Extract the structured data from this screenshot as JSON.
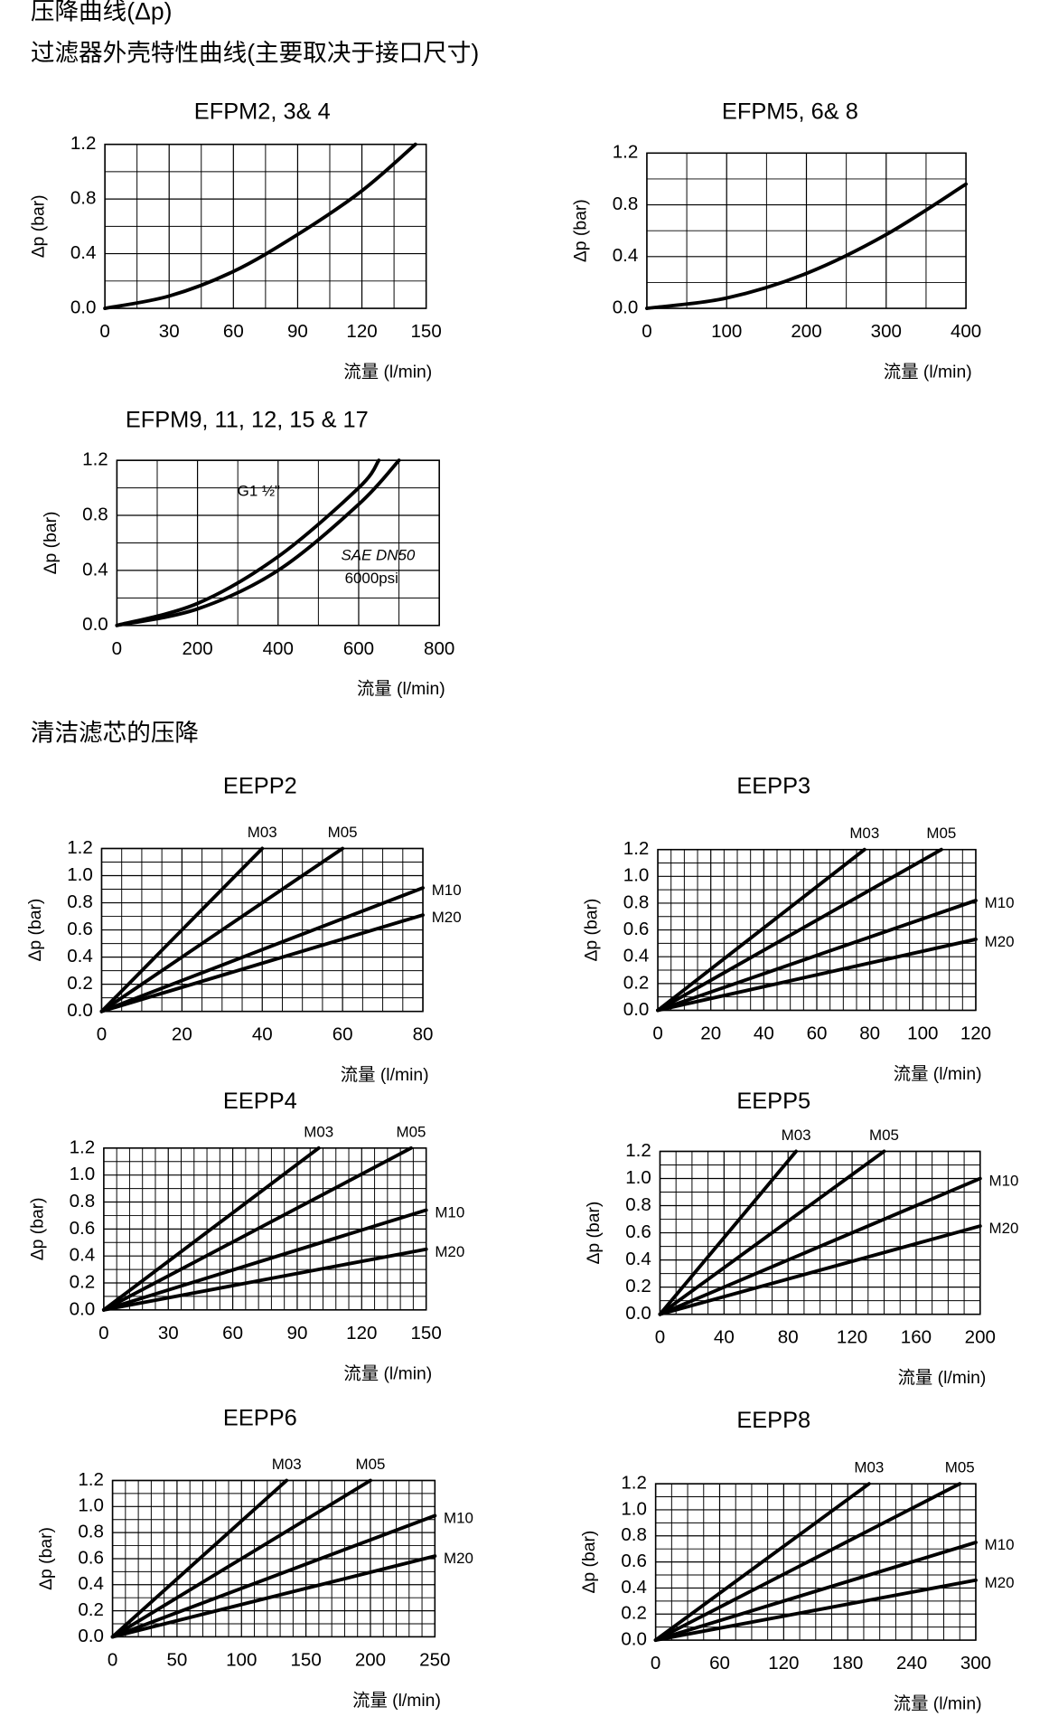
{
  "headings": {
    "title": "压降曲线(Δp)",
    "subtitle": "过滤器外壳特性曲线(主要取决于接口尺寸)",
    "section": "清洁滤芯的压降"
  },
  "chart_data": [
    {
      "type": "line",
      "title": "EFPM2, 3& 4",
      "ylabel": "Δp (bar)",
      "xlabel": "流量 (l/min)",
      "xlim": [
        0,
        150
      ],
      "ylim": [
        0,
        1.2
      ],
      "xticks": [
        0,
        30,
        60,
        90,
        120,
        150
      ],
      "yticks": [
        {
          "value": 0,
          "label": "0.0"
        },
        0.4,
        0.8,
        1.2
      ],
      "grid": true,
      "grid_divisions": {
        "x": 2,
        "y": 2
      },
      "series": [
        {
          "color": "#000000",
          "x": [
            0,
            30,
            60,
            90,
            120,
            145
          ],
          "values": [
            0,
            0.09,
            0.27,
            0.54,
            0.86,
            1.2
          ]
        }
      ]
    },
    {
      "type": "line",
      "title": "EFPM5, 6& 8",
      "ylabel": "Δp (bar)",
      "xlabel": "流量 (l/min)",
      "xlim": [
        0,
        400
      ],
      "ylim": [
        0,
        1.2
      ],
      "xticks": [
        0,
        100,
        200,
        300,
        400
      ],
      "yticks": [
        {
          "value": 0,
          "label": "0.0"
        },
        0.4,
        0.8,
        1.2
      ],
      "grid": true,
      "grid_divisions": {
        "x": 2,
        "y": 2
      },
      "series": [
        {
          "color": "#000000",
          "x": [
            0,
            100,
            200,
            300,
            400
          ],
          "values": [
            0,
            0.08,
            0.27,
            0.57,
            0.96
          ]
        }
      ]
    },
    {
      "type": "line",
      "title": "EFPM9, 11, 12, 15 & 17",
      "ylabel": "Δp (bar)",
      "xlabel": "流量 (l/min)",
      "xlim": [
        0,
        800
      ],
      "ylim": [
        0,
        1.2
      ],
      "xticks": [
        0,
        200,
        400,
        600,
        800
      ],
      "yticks": [
        {
          "value": 0,
          "label": "0.0"
        },
        0.4,
        0.8,
        1.2
      ],
      "grid": true,
      "grid_divisions": {
        "x": 2,
        "y": 2
      },
      "annotation": "6000psi",
      "series": [
        {
          "name": "G1 ½\"",
          "color": "#000000",
          "x": [
            0,
            200,
            400,
            600,
            650
          ],
          "values": [
            0,
            0.16,
            0.5,
            1.0,
            1.2
          ]
        },
        {
          "name": "SAE DN50",
          "color": "#000000",
          "x": [
            0,
            200,
            400,
            600,
            700
          ],
          "values": [
            0,
            0.12,
            0.4,
            0.88,
            1.2
          ]
        }
      ]
    },
    {
      "type": "line",
      "title": "EEPP2",
      "ylabel": "Δp (bar)",
      "xlabel": "流量 (l/min)",
      "xlim": [
        0,
        80
      ],
      "ylim": [
        0,
        1.2
      ],
      "xticks": [
        0,
        20,
        40,
        60,
        80
      ],
      "yticks": [
        {
          "value": 0,
          "label": "0.0"
        },
        0.2,
        0.4,
        0.6,
        0.8,
        {
          "value": 1,
          "label": "1.0"
        },
        1.2
      ],
      "grid": true,
      "grid_divisions": {
        "x": 4,
        "y": 2
      },
      "series": [
        {
          "name": "M03",
          "color": "#000000",
          "x": [
            0,
            40
          ],
          "values": [
            0,
            1.2
          ]
        },
        {
          "name": "M05",
          "color": "#000000",
          "x": [
            0,
            60
          ],
          "values": [
            0,
            1.2
          ]
        },
        {
          "name": "M10",
          "color": "#000000",
          "x": [
            0,
            80
          ],
          "values": [
            0,
            0.91
          ]
        },
        {
          "name": "M20",
          "color": "#000000",
          "x": [
            0,
            80
          ],
          "values": [
            0,
            0.71
          ]
        }
      ]
    },
    {
      "type": "line",
      "title": "EEPP3",
      "ylabel": "Δp (bar)",
      "xlabel": "流量 (l/min)",
      "xlim": [
        0,
        120
      ],
      "ylim": [
        0,
        1.2
      ],
      "xticks": [
        0,
        20,
        40,
        60,
        80,
        100,
        120
      ],
      "yticks": [
        {
          "value": 0,
          "label": "0.0"
        },
        0.2,
        0.4,
        0.6,
        0.8,
        {
          "value": 1,
          "label": "1.0"
        },
        1.2
      ],
      "grid": true,
      "grid_divisions": {
        "x": 4,
        "y": 2
      },
      "series": [
        {
          "name": "M03",
          "color": "#000000",
          "x": [
            0,
            78
          ],
          "values": [
            0,
            1.2
          ]
        },
        {
          "name": "M05",
          "color": "#000000",
          "x": [
            0,
            107
          ],
          "values": [
            0,
            1.2
          ]
        },
        {
          "name": "M10",
          "color": "#000000",
          "x": [
            0,
            120
          ],
          "values": [
            0,
            0.82
          ]
        },
        {
          "name": "M20",
          "color": "#000000",
          "x": [
            0,
            120
          ],
          "values": [
            0,
            0.53
          ]
        }
      ]
    },
    {
      "type": "line",
      "title": "EEPP4",
      "ylabel": "Δp (bar)",
      "xlabel": "流量 (l/min)",
      "xlim": [
        0,
        150
      ],
      "ylim": [
        0,
        1.2
      ],
      "xticks": [
        0,
        30,
        60,
        90,
        120,
        150
      ],
      "yticks": [
        {
          "value": 0,
          "label": "0.0"
        },
        0.2,
        0.4,
        0.6,
        0.8,
        {
          "value": 1,
          "label": "1.0"
        },
        1.2
      ],
      "grid": true,
      "grid_divisions": {
        "x": 5,
        "y": 2
      },
      "series": [
        {
          "name": "M03",
          "color": "#000000",
          "x": [
            0,
            100
          ],
          "values": [
            0,
            1.2
          ]
        },
        {
          "name": "M05",
          "color": "#000000",
          "x": [
            0,
            143
          ],
          "values": [
            0,
            1.2
          ]
        },
        {
          "name": "M10",
          "color": "#000000",
          "x": [
            0,
            150
          ],
          "values": [
            0,
            0.74
          ]
        },
        {
          "name": "M20",
          "color": "#000000",
          "x": [
            0,
            150
          ],
          "values": [
            0,
            0.45
          ]
        }
      ]
    },
    {
      "type": "line",
      "title": "EEPP5",
      "ylabel": "Δp (bar)",
      "xlabel": "流量 (l/min)",
      "xlim": [
        0,
        200
      ],
      "ylim": [
        0,
        1.2
      ],
      "xticks": [
        0,
        40,
        80,
        120,
        160,
        200
      ],
      "yticks": [
        {
          "value": 0,
          "label": "0.0"
        },
        0.2,
        0.4,
        0.6,
        0.8,
        {
          "value": 1,
          "label": "1.0"
        },
        1.2
      ],
      "grid": true,
      "grid_divisions": {
        "x": 4,
        "y": 2
      },
      "series": [
        {
          "name": "M03",
          "color": "#000000",
          "x": [
            0,
            85
          ],
          "values": [
            0,
            1.2
          ]
        },
        {
          "name": "M05",
          "color": "#000000",
          "x": [
            0,
            140
          ],
          "values": [
            0,
            1.2
          ]
        },
        {
          "name": "M10",
          "color": "#000000",
          "x": [
            0,
            200
          ],
          "values": [
            0,
            1.0
          ]
        },
        {
          "name": "M20",
          "color": "#000000",
          "x": [
            0,
            200
          ],
          "values": [
            0,
            0.65
          ]
        }
      ]
    },
    {
      "type": "line",
      "title": "EEPP6",
      "ylabel": "Δp (bar)",
      "xlabel": "流量 (l/min)",
      "xlim": [
        0,
        250
      ],
      "ylim": [
        0,
        1.2
      ],
      "xticks": [
        0,
        50,
        100,
        150,
        200,
        250
      ],
      "yticks": [
        {
          "value": 0,
          "label": "0.0"
        },
        0.2,
        0.4,
        0.6,
        0.8,
        {
          "value": 1,
          "label": "1.0"
        },
        1.2
      ],
      "grid": true,
      "grid_divisions": {
        "x": 5,
        "y": 2
      },
      "series": [
        {
          "name": "M03",
          "color": "#000000",
          "x": [
            0,
            135
          ],
          "values": [
            0,
            1.2
          ]
        },
        {
          "name": "M05",
          "color": "#000000",
          "x": [
            0,
            200
          ],
          "values": [
            0,
            1.2
          ]
        },
        {
          "name": "M10",
          "color": "#000000",
          "x": [
            0,
            250
          ],
          "values": [
            0,
            0.93
          ]
        },
        {
          "name": "M20",
          "color": "#000000",
          "x": [
            0,
            250
          ],
          "values": [
            0,
            0.62
          ]
        }
      ]
    },
    {
      "type": "line",
      "title": "EEPP8",
      "ylabel": "Δp (bar)",
      "xlabel": "流量 (l/min)",
      "xlim": [
        0,
        300
      ],
      "ylim": [
        0,
        1.2
      ],
      "xticks": [
        0,
        60,
        120,
        180,
        240,
        300
      ],
      "yticks": [
        {
          "value": 0,
          "label": "0.0"
        },
        0.2,
        0.4,
        0.6,
        0.8,
        {
          "value": 1,
          "label": "1.0"
        },
        1.2
      ],
      "grid": true,
      "grid_divisions": {
        "x": 4,
        "y": 2
      },
      "series": [
        {
          "name": "M03",
          "color": "#000000",
          "x": [
            0,
            200
          ],
          "values": [
            0,
            1.2
          ]
        },
        {
          "name": "M05",
          "color": "#000000",
          "x": [
            0,
            285
          ],
          "values": [
            0,
            1.2
          ]
        },
        {
          "name": "M10",
          "color": "#000000",
          "x": [
            0,
            300
          ],
          "values": [
            0,
            0.75
          ]
        },
        {
          "name": "M20",
          "color": "#000000",
          "x": [
            0,
            300
          ],
          "values": [
            0,
            0.46
          ]
        }
      ]
    }
  ]
}
